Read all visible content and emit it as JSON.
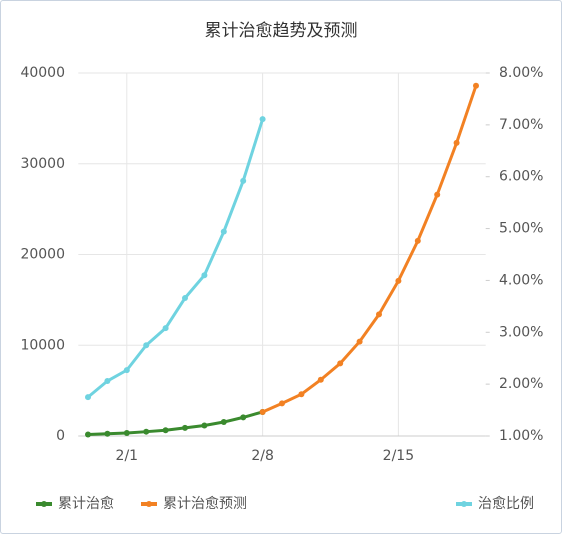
{
  "chart_data": {
    "type": "line",
    "title": "累计治愈趋势及预测",
    "categories": [
      null,
      null,
      "2/1",
      null,
      null,
      null,
      null,
      null,
      null,
      "2/8",
      null,
      null,
      null,
      null,
      null,
      null,
      "2/15",
      null,
      null,
      null,
      null
    ],
    "series": [
      {
        "name": "累计治愈",
        "color": "#3a8a2e",
        "values": [
          171,
          243,
          328,
          475,
          632,
          892,
          1153,
          1540,
          2050,
          2649,
          null,
          null,
          null,
          null,
          null,
          null,
          null,
          null,
          null,
          null,
          null
        ]
      },
      {
        "name": "累计治愈预测",
        "color": "#f28123",
        "values": [
          null,
          null,
          null,
          null,
          null,
          null,
          null,
          null,
          null,
          2649,
          3600,
          4600,
          6200,
          8000,
          10400,
          13400,
          17100,
          21500,
          26600,
          32300,
          38600
        ]
      },
      {
        "name": "治愈比例",
        "color": "#6fd3e0",
        "axis": "y2",
        "values": [
          1.75,
          2.06,
          2.27,
          2.75,
          3.08,
          3.66,
          4.1,
          4.94,
          5.92,
          7.11,
          null,
          null,
          null,
          null,
          null,
          null,
          null,
          null,
          null,
          null,
          null
        ]
      }
    ],
    "ylim": [
      0,
      40000
    ],
    "yticks": [
      0,
      10000,
      20000,
      30000,
      40000
    ],
    "y2lim": [
      1,
      8
    ],
    "y2ticks": [
      {
        "value": 1,
        "label": "1.00%"
      },
      {
        "value": 2,
        "label": "2.00%"
      },
      {
        "value": 3,
        "label": "3.00%"
      },
      {
        "value": 4,
        "label": "4.00%"
      },
      {
        "value": 5,
        "label": "5.00%"
      },
      {
        "value": 6,
        "label": "6.00%"
      },
      {
        "value": 7,
        "label": "7.00%"
      },
      {
        "value": 8,
        "label": "8.00%"
      }
    ],
    "grid": true,
    "legend": "bottom"
  }
}
